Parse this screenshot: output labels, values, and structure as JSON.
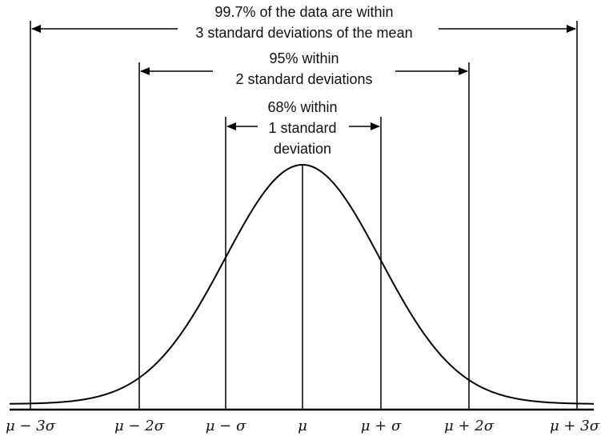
{
  "annotations": {
    "band_3sd": {
      "line1": "99.7% of the data are within",
      "line2": "3 standard deviations of the mean"
    },
    "band_2sd": {
      "line1": "95% within",
      "line2": "2 standard deviations"
    },
    "band_1sd": {
      "line1": "68% within",
      "line2": "1 standard",
      "line3": "deviation"
    }
  },
  "axis": {
    "ticks": [
      "μ − 3σ",
      "μ − 2σ",
      "μ − σ",
      "μ",
      "μ + σ",
      "μ + 2σ",
      "μ + 3σ"
    ]
  },
  "colors": {
    "ink": "#000000",
    "background": "#ffffff"
  }
}
